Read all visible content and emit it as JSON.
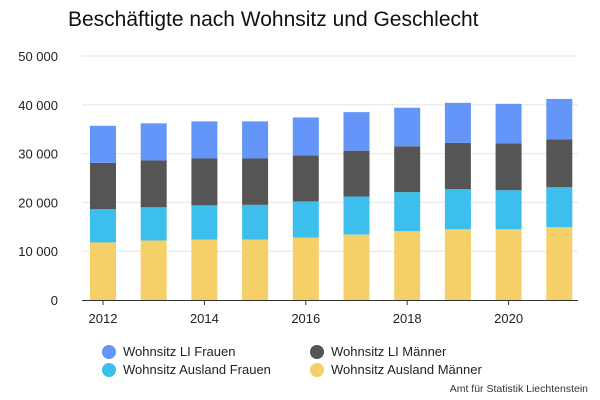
{
  "chart_data": {
    "type": "bar",
    "stacked": true,
    "title": "Beschäftigte nach Wohnsitz und Geschlecht",
    "source": "Amt für Statistik Liechtenstein",
    "xlabel": "",
    "ylabel": "",
    "ylim": [
      0,
      50000
    ],
    "yticks": [
      "0",
      "10 000",
      "20 000",
      "30 000",
      "40 000",
      "50 000"
    ],
    "x": [
      2012,
      2013,
      2014,
      2015,
      2016,
      2017,
      2018,
      2019,
      2020,
      2021
    ],
    "xticks": [
      "2012",
      "2014",
      "2016",
      "2018",
      "2020"
    ],
    "grid": true,
    "legend_position": "bottom",
    "series": [
      {
        "name": "Wohnsitz Ausland Männer",
        "color": "#f5cf68",
        "values": [
          11800,
          12200,
          12400,
          12400,
          12800,
          13400,
          14100,
          14500,
          14500,
          14900
        ]
      },
      {
        "name": "Wohnsitz Ausland Frauen",
        "color": "#3dbfee",
        "values": [
          6800,
          6800,
          7000,
          7100,
          7400,
          7800,
          8000,
          8200,
          8000,
          8200
        ]
      },
      {
        "name": "Wohnsitz LI Männer",
        "color": "#555555",
        "values": [
          9500,
          9600,
          9600,
          9500,
          9400,
          9400,
          9400,
          9500,
          9600,
          9800
        ]
      },
      {
        "name": "Wohnsitz LI Frauen",
        "color": "#6495f8",
        "values": [
          7600,
          7600,
          7600,
          7600,
          7800,
          7900,
          7900,
          8200,
          8100,
          8300
        ]
      }
    ]
  },
  "legend": [
    {
      "label": "Wohnsitz LI Frauen",
      "color": "#6495f8"
    },
    {
      "label": "Wohnsitz LI Männer",
      "color": "#555555"
    },
    {
      "label": "Wohnsitz Ausland Frauen",
      "color": "#3dbfee"
    },
    {
      "label": "Wohnsitz Ausland Männer",
      "color": "#f5cf68"
    }
  ]
}
